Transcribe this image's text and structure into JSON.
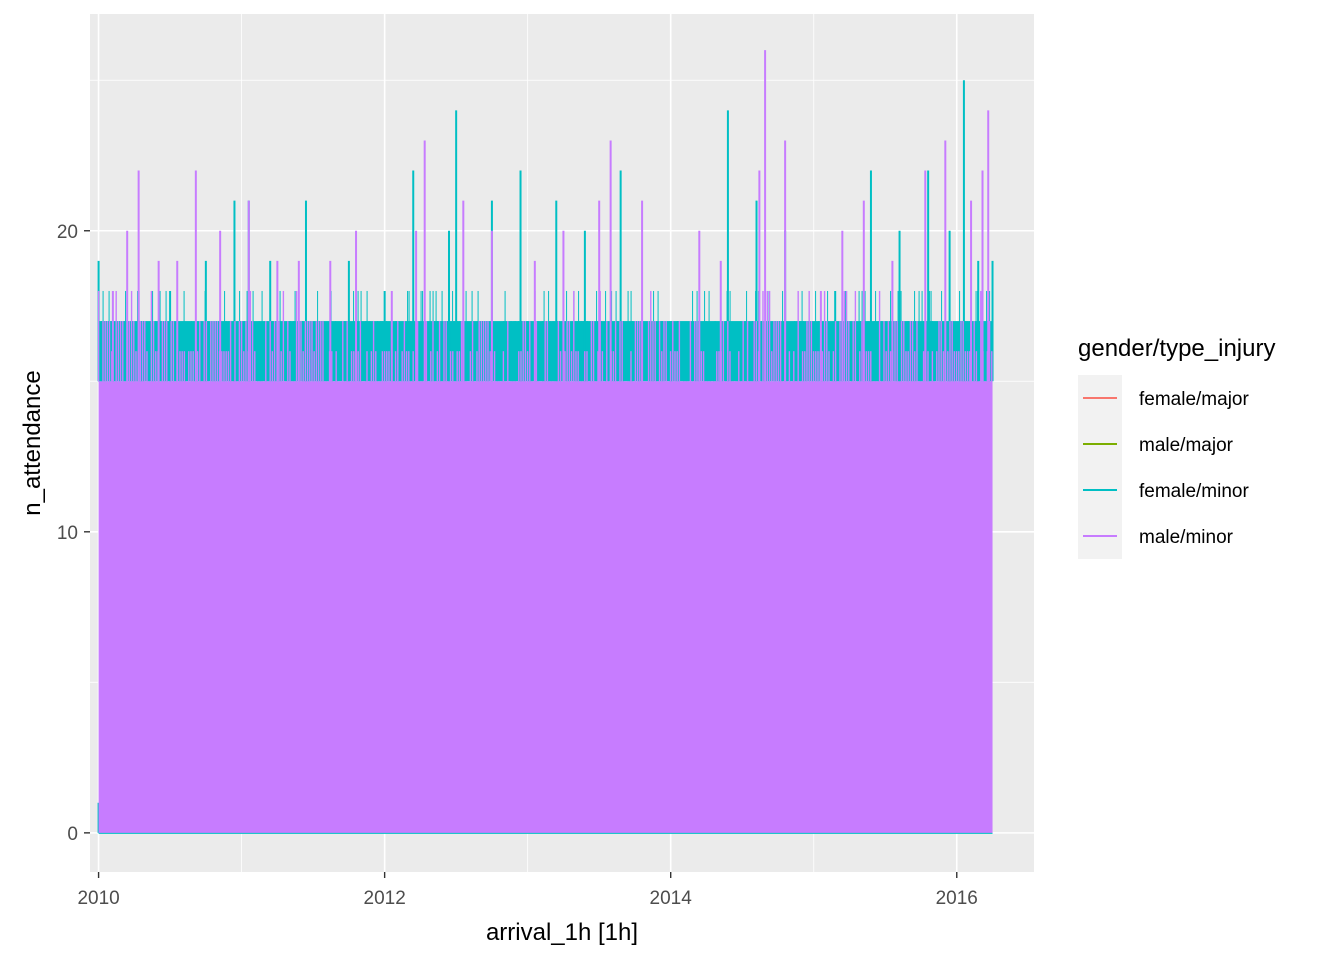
{
  "chart_data": {
    "type": "line",
    "xlabel": "arrival_1h [1h]",
    "ylabel": "n_attendance",
    "x_ticks": [
      2010,
      2012,
      2014,
      2016
    ],
    "xlim": [
      2009.94,
      2016.54
    ],
    "y_ticks": [
      0,
      10,
      20
    ],
    "ylim": [
      -1.3,
      27.2
    ],
    "grid": true,
    "legend": {
      "title": "gender/type_injury",
      "position": "right",
      "entries": [
        {
          "name": "female/major",
          "color": "#F8766D"
        },
        {
          "name": "male/major",
          "color": "#7CAE00"
        },
        {
          "name": "female/minor",
          "color": "#00BFC4"
        },
        {
          "name": "male/minor",
          "color": "#C77CFF"
        }
      ]
    },
    "x_range": [
      2010.0,
      2016.25
    ],
    "series": [
      {
        "name": "female/minor",
        "color": "#00BFC4",
        "fill_to": 15,
        "spikes": [
          [
            2010.0,
            19
          ],
          [
            2010.02,
            14
          ],
          [
            2010.1,
            16
          ],
          [
            2010.3,
            17
          ],
          [
            2010.5,
            18
          ],
          [
            2010.75,
            19
          ],
          [
            2010.95,
            21
          ],
          [
            2011.05,
            21
          ],
          [
            2011.2,
            19
          ],
          [
            2011.45,
            21
          ],
          [
            2011.75,
            19
          ],
          [
            2012.0,
            18
          ],
          [
            2012.2,
            22
          ],
          [
            2012.45,
            20
          ],
          [
            2012.5,
            24
          ],
          [
            2012.75,
            21
          ],
          [
            2012.95,
            22
          ],
          [
            2013.2,
            21
          ],
          [
            2013.4,
            20
          ],
          [
            2013.65,
            22
          ],
          [
            2013.85,
            14
          ],
          [
            2014.0,
            12
          ],
          [
            2014.05,
            17
          ],
          [
            2014.4,
            24
          ],
          [
            2014.6,
            21
          ],
          [
            2014.8,
            20
          ],
          [
            2015.0,
            15
          ],
          [
            2015.15,
            18
          ],
          [
            2015.4,
            22
          ],
          [
            2015.6,
            20
          ],
          [
            2015.8,
            22
          ],
          [
            2015.95,
            20
          ],
          [
            2016.05,
            25
          ],
          [
            2016.15,
            19
          ],
          [
            2016.25,
            19
          ]
        ],
        "floor_spikes": [
          2010.0,
          2010.35,
          2010.52,
          2010.72,
          2011.12,
          2011.48,
          2011.6,
          2011.97,
          2012.22,
          2012.9,
          2012.98,
          2013.18,
          2015.18
        ]
      },
      {
        "name": "male/minor",
        "color": "#C77CFF",
        "fill_to": 15,
        "spikes": [
          [
            2010.1,
            18
          ],
          [
            2010.2,
            20
          ],
          [
            2010.28,
            22
          ],
          [
            2010.42,
            19
          ],
          [
            2010.55,
            19
          ],
          [
            2010.68,
            22
          ],
          [
            2010.85,
            20
          ],
          [
            2011.05,
            21
          ],
          [
            2011.25,
            19
          ],
          [
            2011.4,
            19
          ],
          [
            2011.62,
            19
          ],
          [
            2011.8,
            20
          ],
          [
            2012.05,
            18
          ],
          [
            2012.22,
            20
          ],
          [
            2012.28,
            23
          ],
          [
            2012.55,
            21
          ],
          [
            2012.75,
            20
          ],
          [
            2013.05,
            19
          ],
          [
            2013.25,
            20
          ],
          [
            2013.5,
            21
          ],
          [
            2013.58,
            23
          ],
          [
            2013.8,
            21
          ],
          [
            2014.2,
            20
          ],
          [
            2014.35,
            19
          ],
          [
            2014.62,
            22
          ],
          [
            2014.66,
            26
          ],
          [
            2014.8,
            23
          ],
          [
            2015.05,
            18
          ],
          [
            2015.2,
            20
          ],
          [
            2015.35,
            21
          ],
          [
            2015.55,
            19
          ],
          [
            2015.78,
            22
          ],
          [
            2015.92,
            23
          ],
          [
            2016.1,
            21
          ],
          [
            2016.18,
            22
          ],
          [
            2016.22,
            24
          ]
        ]
      }
    ]
  }
}
